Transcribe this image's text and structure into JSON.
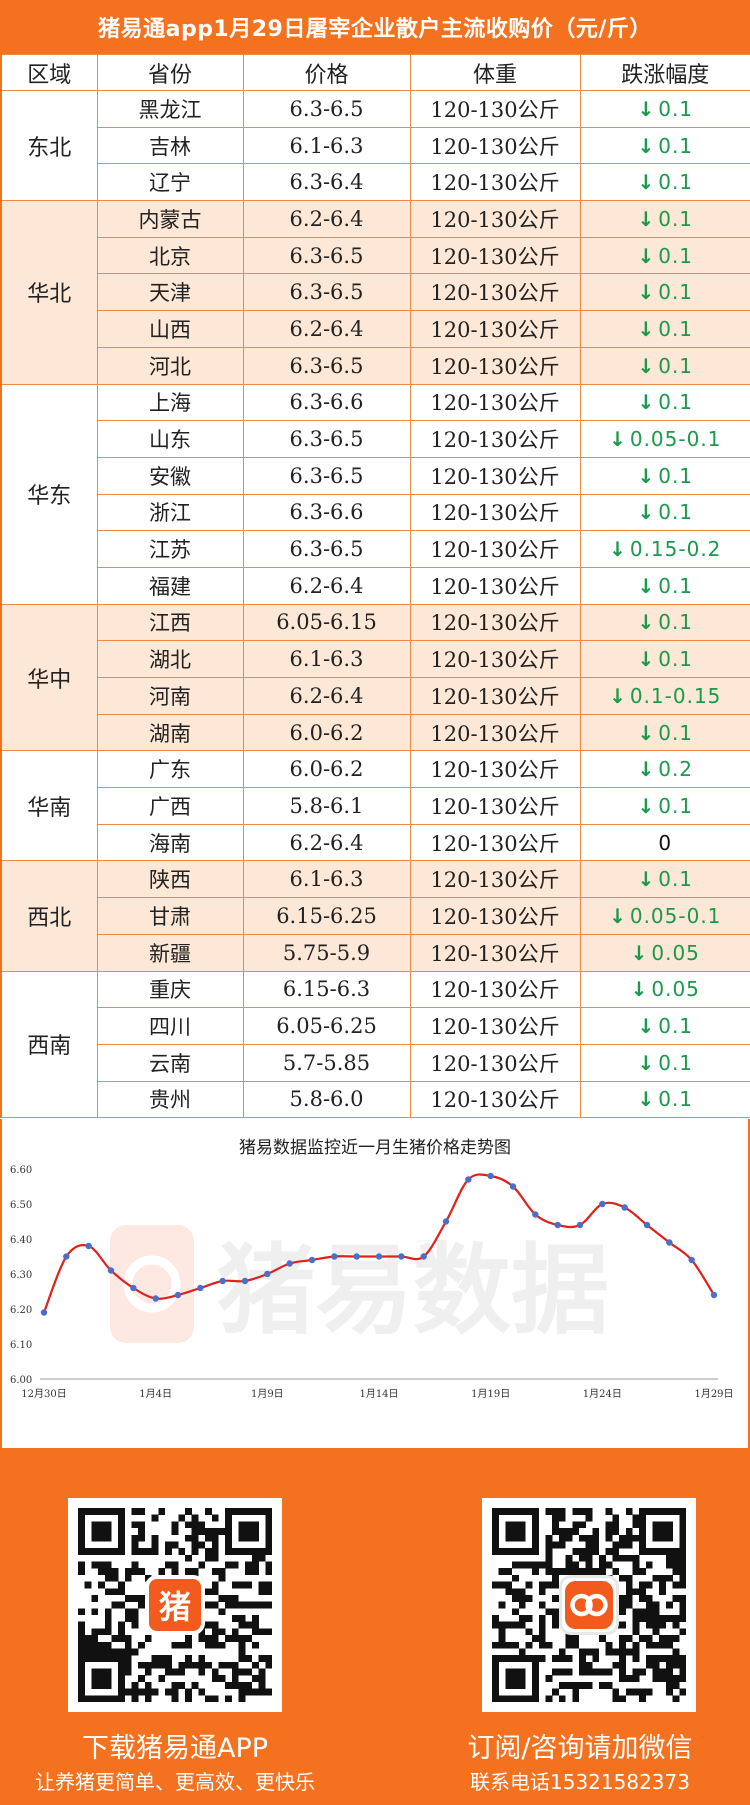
{
  "title": "猪易通app1月29日屠宰企业散户主流收购价（元/斤）",
  "table": {
    "headers": [
      "区域",
      "省份",
      "价格",
      "体重",
      "跌涨幅度"
    ],
    "regions": [
      {
        "name": "东北",
        "shaded": false,
        "rows": [
          {
            "province": "黑龙江",
            "price": "6.3-6.5",
            "weight": "120-130公斤",
            "change": "0.1",
            "dir": "down"
          },
          {
            "province": "吉林",
            "price": "6.1-6.3",
            "weight": "120-130公斤",
            "change": "0.1",
            "dir": "down"
          },
          {
            "province": "辽宁",
            "price": "6.3-6.4",
            "weight": "120-130公斤",
            "change": "0.1",
            "dir": "down"
          }
        ]
      },
      {
        "name": "华北",
        "shaded": true,
        "rows": [
          {
            "province": "内蒙古",
            "price": "6.2-6.4",
            "weight": "120-130公斤",
            "change": "0.1",
            "dir": "down"
          },
          {
            "province": "北京",
            "price": "6.3-6.5",
            "weight": "120-130公斤",
            "change": "0.1",
            "dir": "down"
          },
          {
            "province": "天津",
            "price": "6.3-6.5",
            "weight": "120-130公斤",
            "change": "0.1",
            "dir": "down"
          },
          {
            "province": "山西",
            "price": "6.2-6.4",
            "weight": "120-130公斤",
            "change": "0.1",
            "dir": "down"
          },
          {
            "province": "河北",
            "price": "6.3-6.5",
            "weight": "120-130公斤",
            "change": "0.1",
            "dir": "down"
          }
        ]
      },
      {
        "name": "华东",
        "shaded": false,
        "rows": [
          {
            "province": "上海",
            "price": "6.3-6.6",
            "weight": "120-130公斤",
            "change": "0.1",
            "dir": "down"
          },
          {
            "province": "山东",
            "price": "6.3-6.5",
            "weight": "120-130公斤",
            "change": "0.05-0.1",
            "dir": "down"
          },
          {
            "province": "安徽",
            "price": "6.3-6.5",
            "weight": "120-130公斤",
            "change": "0.1",
            "dir": "down"
          },
          {
            "province": "浙江",
            "price": "6.3-6.6",
            "weight": "120-130公斤",
            "change": "0.1",
            "dir": "down"
          },
          {
            "province": "江苏",
            "price": "6.3-6.5",
            "weight": "120-130公斤",
            "change": "0.15-0.2",
            "dir": "down"
          },
          {
            "province": "福建",
            "price": "6.2-6.4",
            "weight": "120-130公斤",
            "change": "0.1",
            "dir": "down"
          }
        ]
      },
      {
        "name": "华中",
        "shaded": true,
        "rows": [
          {
            "province": "江西",
            "price": "6.05-6.15",
            "weight": "120-130公斤",
            "change": "0.1",
            "dir": "down"
          },
          {
            "province": "湖北",
            "price": "6.1-6.3",
            "weight": "120-130公斤",
            "change": "0.1",
            "dir": "down"
          },
          {
            "province": "河南",
            "price": "6.2-6.4",
            "weight": "120-130公斤",
            "change": "0.1-0.15",
            "dir": "down"
          },
          {
            "province": "湖南",
            "price": "6.0-6.2",
            "weight": "120-130公斤",
            "change": "0.1",
            "dir": "down"
          }
        ]
      },
      {
        "name": "华南",
        "shaded": false,
        "rows": [
          {
            "province": "广东",
            "price": "6.0-6.2",
            "weight": "120-130公斤",
            "change": "0.2",
            "dir": "down"
          },
          {
            "province": "广西",
            "price": "5.8-6.1",
            "weight": "120-130公斤",
            "change": "0.1",
            "dir": "down"
          },
          {
            "province": "海南",
            "price": "6.2-6.4",
            "weight": "120-130公斤",
            "change": "0",
            "dir": "flat"
          }
        ]
      },
      {
        "name": "西北",
        "shaded": true,
        "rows": [
          {
            "province": "陕西",
            "price": "6.1-6.3",
            "weight": "120-130公斤",
            "change": "0.1",
            "dir": "down"
          },
          {
            "province": "甘肃",
            "price": "6.15-6.25",
            "weight": "120-130公斤",
            "change": "0.05-0.1",
            "dir": "down"
          },
          {
            "province": "新疆",
            "price": "5.75-5.9",
            "weight": "120-130公斤",
            "change": "0.05",
            "dir": "down"
          }
        ]
      },
      {
        "name": "西南",
        "shaded": false,
        "rows": [
          {
            "province": "重庆",
            "price": "6.15-6.3",
            "weight": "120-130公斤",
            "change": "0.05",
            "dir": "down"
          },
          {
            "province": "四川",
            "price": "6.05-6.25",
            "weight": "120-130公斤",
            "change": "0.1",
            "dir": "down"
          },
          {
            "province": "云南",
            "price": "5.7-5.85",
            "weight": "120-130公斤",
            "change": "0.1",
            "dir": "down"
          },
          {
            "province": "贵州",
            "price": "5.8-6.0",
            "weight": "120-130公斤",
            "change": "0.1",
            "dir": "down"
          }
        ]
      }
    ]
  },
  "chart_data": {
    "type": "line",
    "title": "猪易数据监控近一月生猪价格走势图",
    "xlabel": "",
    "ylabel": "",
    "ylim": [
      6.0,
      6.6
    ],
    "yticks": [
      "6.00",
      "6.10",
      "6.20",
      "6.30",
      "6.40",
      "6.50",
      "6.60"
    ],
    "xticks": [
      "12月30日",
      "1月4日",
      "1月9日",
      "1月14日",
      "1月19日",
      "1月24日",
      "1月29日"
    ],
    "grid": false,
    "legend": "none",
    "line_color": "#e0201b",
    "marker_color": "#4a6fc9",
    "x": [
      "12月30日",
      "12月31日",
      "1月1日",
      "1月2日",
      "1月3日",
      "1月4日",
      "1月5日",
      "1月6日",
      "1月7日",
      "1月8日",
      "1月9日",
      "1月10日",
      "1月11日",
      "1月12日",
      "1月13日",
      "1月14日",
      "1月15日",
      "1月16日",
      "1月17日",
      "1月18日",
      "1月19日",
      "1月20日",
      "1月21日",
      "1月22日",
      "1月23日",
      "1月24日",
      "1月25日",
      "1月26日",
      "1月27日",
      "1月28日",
      "1月29日"
    ],
    "values": [
      6.19,
      6.35,
      6.38,
      6.31,
      6.26,
      6.23,
      6.24,
      6.26,
      6.28,
      6.28,
      6.3,
      6.33,
      6.34,
      6.35,
      6.35,
      6.35,
      6.35,
      6.35,
      6.45,
      6.57,
      6.58,
      6.55,
      6.47,
      6.44,
      6.44,
      6.5,
      6.49,
      6.44,
      6.39,
      6.34,
      6.24
    ]
  },
  "watermark": "猪易数据",
  "footer": {
    "left_badge": "猪",
    "download_title": "下载猪易通APP",
    "download_sub": "让养猪更简单、更高效、更快乐",
    "wechat_title": "订阅/咨询请加微信",
    "wechat_sub": "联系电话15321582373"
  },
  "colors": {
    "accent": "#f4721f",
    "shade": "#fde7d6",
    "down": "#1a9a4a"
  }
}
